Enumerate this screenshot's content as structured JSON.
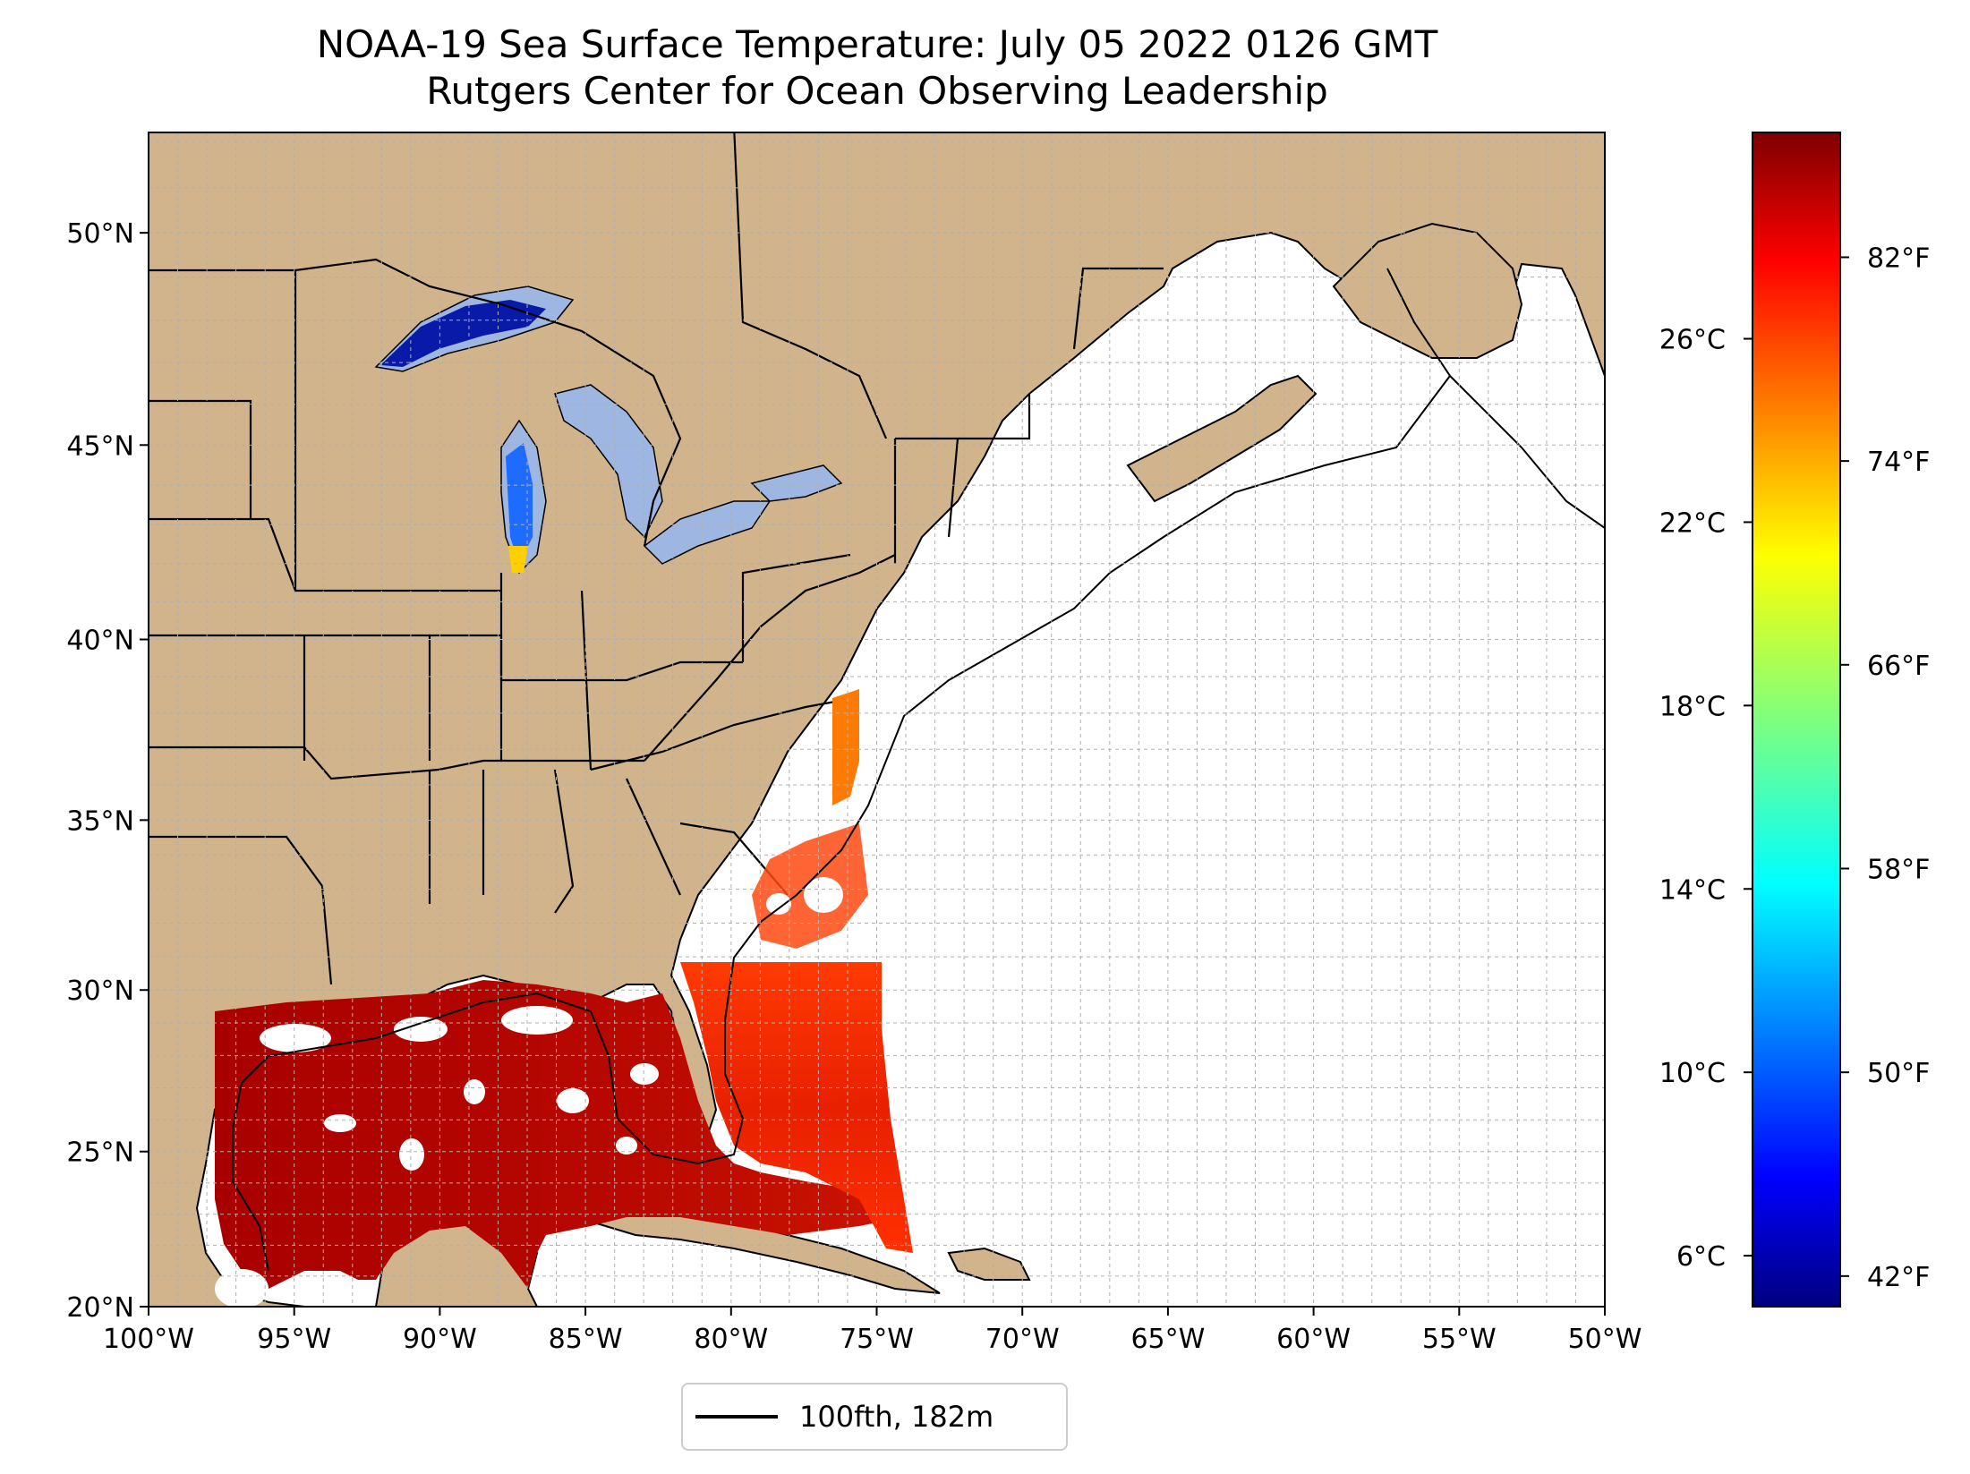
{
  "title": {
    "line1": "NOAA-19 Sea Surface Temperature: July 05 2022 0126 GMT",
    "line2": "Rutgers Center for Ocean Observing Leadership"
  },
  "axes": {
    "lon_labels": [
      "100°W",
      "95°W",
      "90°W",
      "85°W",
      "80°W",
      "75°W",
      "70°W",
      "65°W",
      "60°W",
      "55°W",
      "50°W"
    ],
    "lon_values": [
      -100,
      -95,
      -90,
      -85,
      -80,
      -75,
      -70,
      -65,
      -60,
      -55,
      -50
    ],
    "lat_labels": [
      "20°N",
      "25°N",
      "30°N",
      "35°N",
      "40°N",
      "45°N",
      "50°N"
    ],
    "lat_values": [
      20,
      25,
      30,
      35,
      40,
      45,
      50
    ],
    "lon_range": [
      -100,
      -50
    ],
    "lat_range": [
      20,
      52.2
    ],
    "grid": true,
    "projection": "mercator"
  },
  "colorbar": {
    "colormap": "jet",
    "fahrenheit_labels": [
      "82°F",
      "74°F",
      "66°F",
      "58°F",
      "50°F",
      "42°F"
    ],
    "fahrenheit_values": [
      82,
      74,
      66,
      58,
      50,
      42
    ],
    "celsius_labels": [
      "26°C",
      "22°C",
      "18°C",
      "14°C",
      "10°C",
      "6°C"
    ],
    "celsius_values": [
      26,
      22,
      18,
      14,
      10,
      6
    ],
    "range_f": [
      40.8,
      86.9
    ]
  },
  "legend": {
    "label": "100fth, 182m",
    "placement": "bottom-center"
  },
  "colors": {
    "land": "#d2b48c",
    "lake": "#9db6e2",
    "ocean": "#ffffff",
    "grid": "#b0b0b0",
    "border": "#000000"
  }
}
